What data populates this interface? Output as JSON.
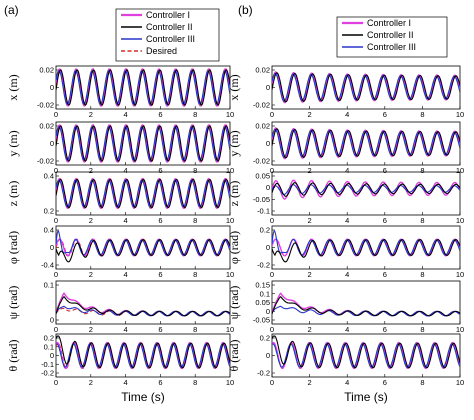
{
  "figure": {
    "colors": {
      "controller_1": "#e040e0",
      "controller_2": "#000000",
      "controller_3": "#2a35c8",
      "desired": "#d42b2b"
    },
    "chart_data": [
      {
        "type": "line",
        "panel": "(a)",
        "ylabel": "x (m)",
        "xlabel": "",
        "xlim": [
          0,
          10
        ],
        "ylim": [
          -0.02,
          0.02
        ],
        "xticks": [
          "0",
          "2",
          "4",
          "6",
          "8",
          "10"
        ],
        "yticks": [
          "0.02",
          "0",
          "-0.02"
        ],
        "legend": [
          "Controller I",
          "Controller II",
          "Controller III",
          "Desired"
        ],
        "series": [
          {
            "name": "Controller I",
            "x": [
              0,
              10
            ],
            "y": [
              0,
              0
            ]
          },
          {
            "name": "Controller II",
            "x": [
              0,
              10
            ],
            "y": [
              0,
              0
            ]
          },
          {
            "name": "Controller III",
            "x": [
              0,
              10
            ],
            "y": [
              0,
              0
            ]
          },
          {
            "name": "Desired",
            "x": [
              0,
              10
            ],
            "y": [
              0,
              0
            ]
          }
        ]
      },
      {
        "type": "line",
        "panel": "(a)",
        "ylabel": "y (m)",
        "xlabel": "",
        "xlim": [
          0,
          10
        ],
        "ylim": [
          -0.02,
          0.02
        ],
        "xticks": [
          "0",
          "2",
          "4",
          "6",
          "8",
          "10"
        ],
        "yticks": [
          "0.02",
          "0",
          "-0.02"
        ],
        "series": []
      },
      {
        "type": "line",
        "panel": "(a)",
        "ylabel": "z (m)",
        "xlabel": "",
        "xlim": [
          0,
          10
        ],
        "ylim": [
          0.2,
          0.45
        ],
        "xticks": [
          "0",
          "2",
          "4",
          "6",
          "8",
          "10"
        ],
        "yticks": [
          "0.4",
          "0.2"
        ],
        "series": []
      },
      {
        "type": "line",
        "panel": "(a)",
        "ylabel": "φ (rad)",
        "xlabel": "",
        "xlim": [
          0,
          10
        ],
        "ylim": [
          -0.4,
          0.4
        ],
        "xticks": [
          "0",
          "2",
          "4",
          "6",
          "8",
          "10"
        ],
        "yticks": [
          "0.4",
          "0",
          "-0.4"
        ],
        "series": []
      },
      {
        "type": "line",
        "panel": "(a)",
        "ylabel": "ψ (rad)",
        "xlabel": "",
        "xlim": [
          0,
          10
        ],
        "ylim": [
          -0.05,
          0.15
        ],
        "xticks": [
          "0",
          "2",
          "4",
          "6",
          "8",
          "10"
        ],
        "yticks": [
          "0.1",
          "0"
        ],
        "series": []
      },
      {
        "type": "line",
        "panel": "(a)",
        "ylabel": "θ (rad)",
        "xlabel": "Time (s)",
        "xlim": [
          0,
          10
        ],
        "ylim": [
          -0.2,
          0.2
        ],
        "xticks": [
          "0",
          "2",
          "4",
          "6",
          "8",
          "10"
        ],
        "yticks": [
          "0.2",
          "0.1",
          "0",
          "-0.1",
          "-0.2"
        ],
        "series": []
      },
      {
        "type": "line",
        "panel": "(b)",
        "ylabel": "x (m)",
        "xlabel": "",
        "xlim": [
          0,
          10
        ],
        "ylim": [
          -0.02,
          0.02
        ],
        "xticks": [
          "0",
          "2",
          "4",
          "6",
          "8",
          "10"
        ],
        "yticks": [
          "0.02",
          "0",
          "-0.02"
        ],
        "legend": [
          "Controller I",
          "Controller II",
          "Controller III"
        ],
        "series": []
      },
      {
        "type": "line",
        "panel": "(b)",
        "ylabel": "y (m)",
        "xlabel": "",
        "xlim": [
          0,
          10
        ],
        "ylim": [
          -0.02,
          0.02
        ],
        "xticks": [
          "0",
          "2",
          "4",
          "6",
          "8",
          "10"
        ],
        "yticks": [
          "0.02",
          "0",
          "-0.02"
        ],
        "series": []
      },
      {
        "type": "line",
        "panel": "(b)",
        "ylabel": "z (m)",
        "xlabel": "",
        "xlim": [
          0,
          10
        ],
        "ylim": [
          -0.1,
          0.05
        ],
        "xticks": [
          "0",
          "2",
          "4",
          "6",
          "8",
          "10"
        ],
        "yticks": [
          "0.05",
          "0",
          "-0.05",
          "-0.1"
        ],
        "series": []
      },
      {
        "type": "line",
        "panel": "(b)",
        "ylabel": "φ (rad)",
        "xlabel": "",
        "xlim": [
          0,
          10
        ],
        "ylim": [
          -0.2,
          0.2
        ],
        "xticks": [
          "0",
          "2",
          "4",
          "6",
          "8",
          "10"
        ],
        "yticks": [
          "0.2",
          "0",
          "-0.2"
        ],
        "series": []
      },
      {
        "type": "line",
        "panel": "(b)",
        "ylabel": "ψ (rad)",
        "xlabel": "",
        "xlim": [
          0,
          10
        ],
        "ylim": [
          -0.05,
          0.15
        ],
        "xticks": [
          "0",
          "2",
          "4",
          "6",
          "8",
          "10"
        ],
        "yticks": [
          "0.15",
          "0.1",
          "0.05",
          "0",
          "-0.05"
        ],
        "series": []
      },
      {
        "type": "line",
        "panel": "(b)",
        "ylabel": "θ (rad)",
        "xlabel": "Time (s)",
        "xlim": [
          0,
          10
        ],
        "ylim": [
          -0.2,
          0.2
        ],
        "xticks": [
          "0",
          "2",
          "4",
          "6",
          "8",
          "10"
        ],
        "yticks": [
          "0.2",
          "0",
          "-0.2"
        ],
        "series": []
      }
    ]
  }
}
